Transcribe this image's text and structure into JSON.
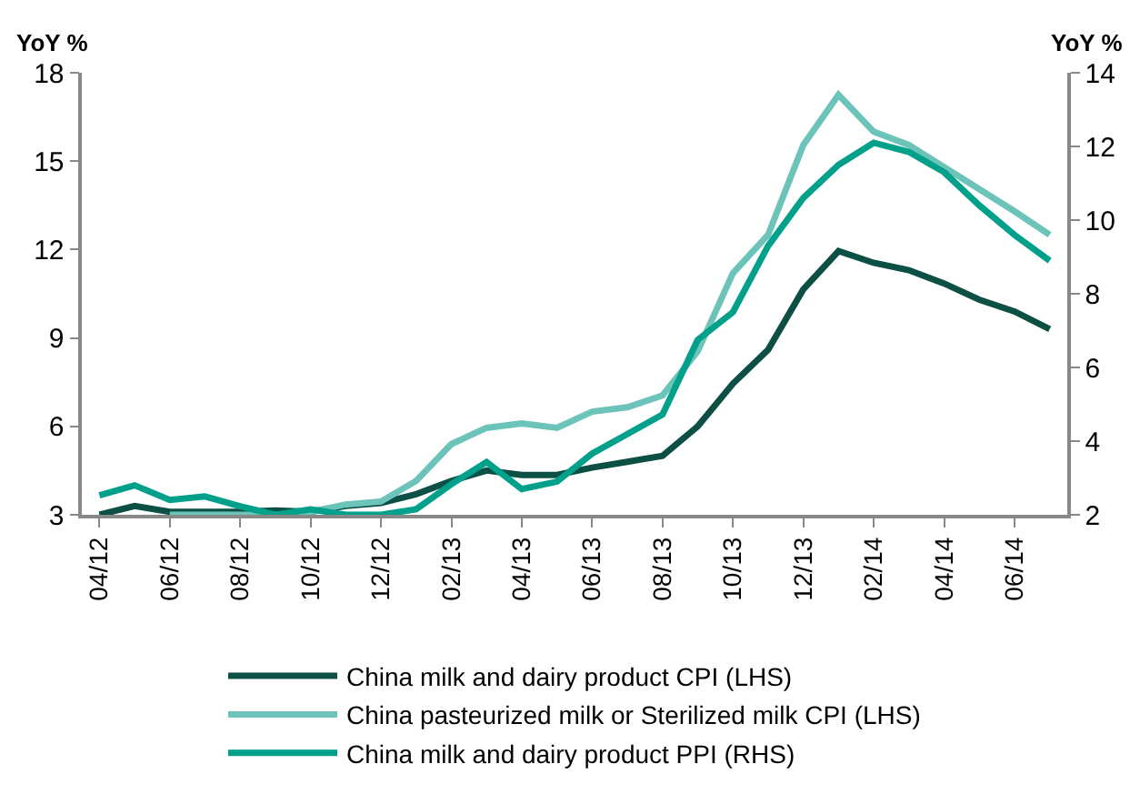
{
  "chart_data": {
    "type": "line",
    "ylabel": "YoY %",
    "y2label": "YoY %",
    "categories": [
      "04/12",
      null,
      "06/12",
      null,
      "08/12",
      null,
      "10/12",
      null,
      "12/12",
      null,
      "02/13",
      null,
      "04/13",
      null,
      "06/13",
      null,
      "08/13",
      null,
      "10/13",
      null,
      "12/13",
      null,
      "02/14",
      null,
      "04/14",
      null,
      "06/14",
      null
    ],
    "ylim": [
      3,
      18
    ],
    "yticks": [
      3,
      6,
      9,
      12,
      15,
      18
    ],
    "y2lim": [
      2,
      14
    ],
    "y2ticks": [
      2,
      4,
      6,
      8,
      10,
      12,
      14
    ],
    "grid": false,
    "legend": "bottom",
    "marker": "none",
    "line_style": "solid",
    "series": [
      {
        "name": "China milk and dairy product CPI (LHS)",
        "color": "#0b4f45",
        "values": [
          3.0,
          3.3,
          3.1,
          3.1,
          3.1,
          3.15,
          3.1,
          3.3,
          3.4,
          3.7,
          4.15,
          4.5,
          4.35,
          4.35,
          4.6,
          4.8,
          5.0,
          6.0,
          7.45,
          8.6,
          10.65,
          11.95,
          11.55,
          11.3,
          10.85,
          10.3,
          9.9,
          9.3
        ]
      },
      {
        "name": "China pasteurized milk or Sterilized milk CPI (LHS)",
        "color": "#6cc3b9",
        "values": [
          null,
          null,
          3.0,
          3.0,
          3.0,
          3.0,
          3.1,
          3.35,
          3.45,
          4.15,
          5.4,
          5.95,
          6.1,
          5.95,
          6.5,
          6.65,
          7.05,
          8.55,
          11.2,
          12.5,
          15.55,
          17.25,
          16.0,
          15.55,
          14.8,
          14.05,
          13.3,
          12.5
        ]
      },
      {
        "name": "China milk and dairy product PPI (RHS)",
        "color": "#00a08a",
        "axis": "y2",
        "values": [
          2.53,
          2.8,
          2.4,
          2.5,
          2.23,
          2.0,
          2.15,
          2.0,
          2.0,
          2.15,
          2.83,
          3.43,
          2.7,
          2.9,
          3.66,
          4.19,
          4.72,
          6.75,
          7.5,
          9.3,
          10.6,
          11.5,
          12.1,
          11.85,
          11.3,
          10.4,
          9.6,
          8.9
        ]
      }
    ]
  }
}
